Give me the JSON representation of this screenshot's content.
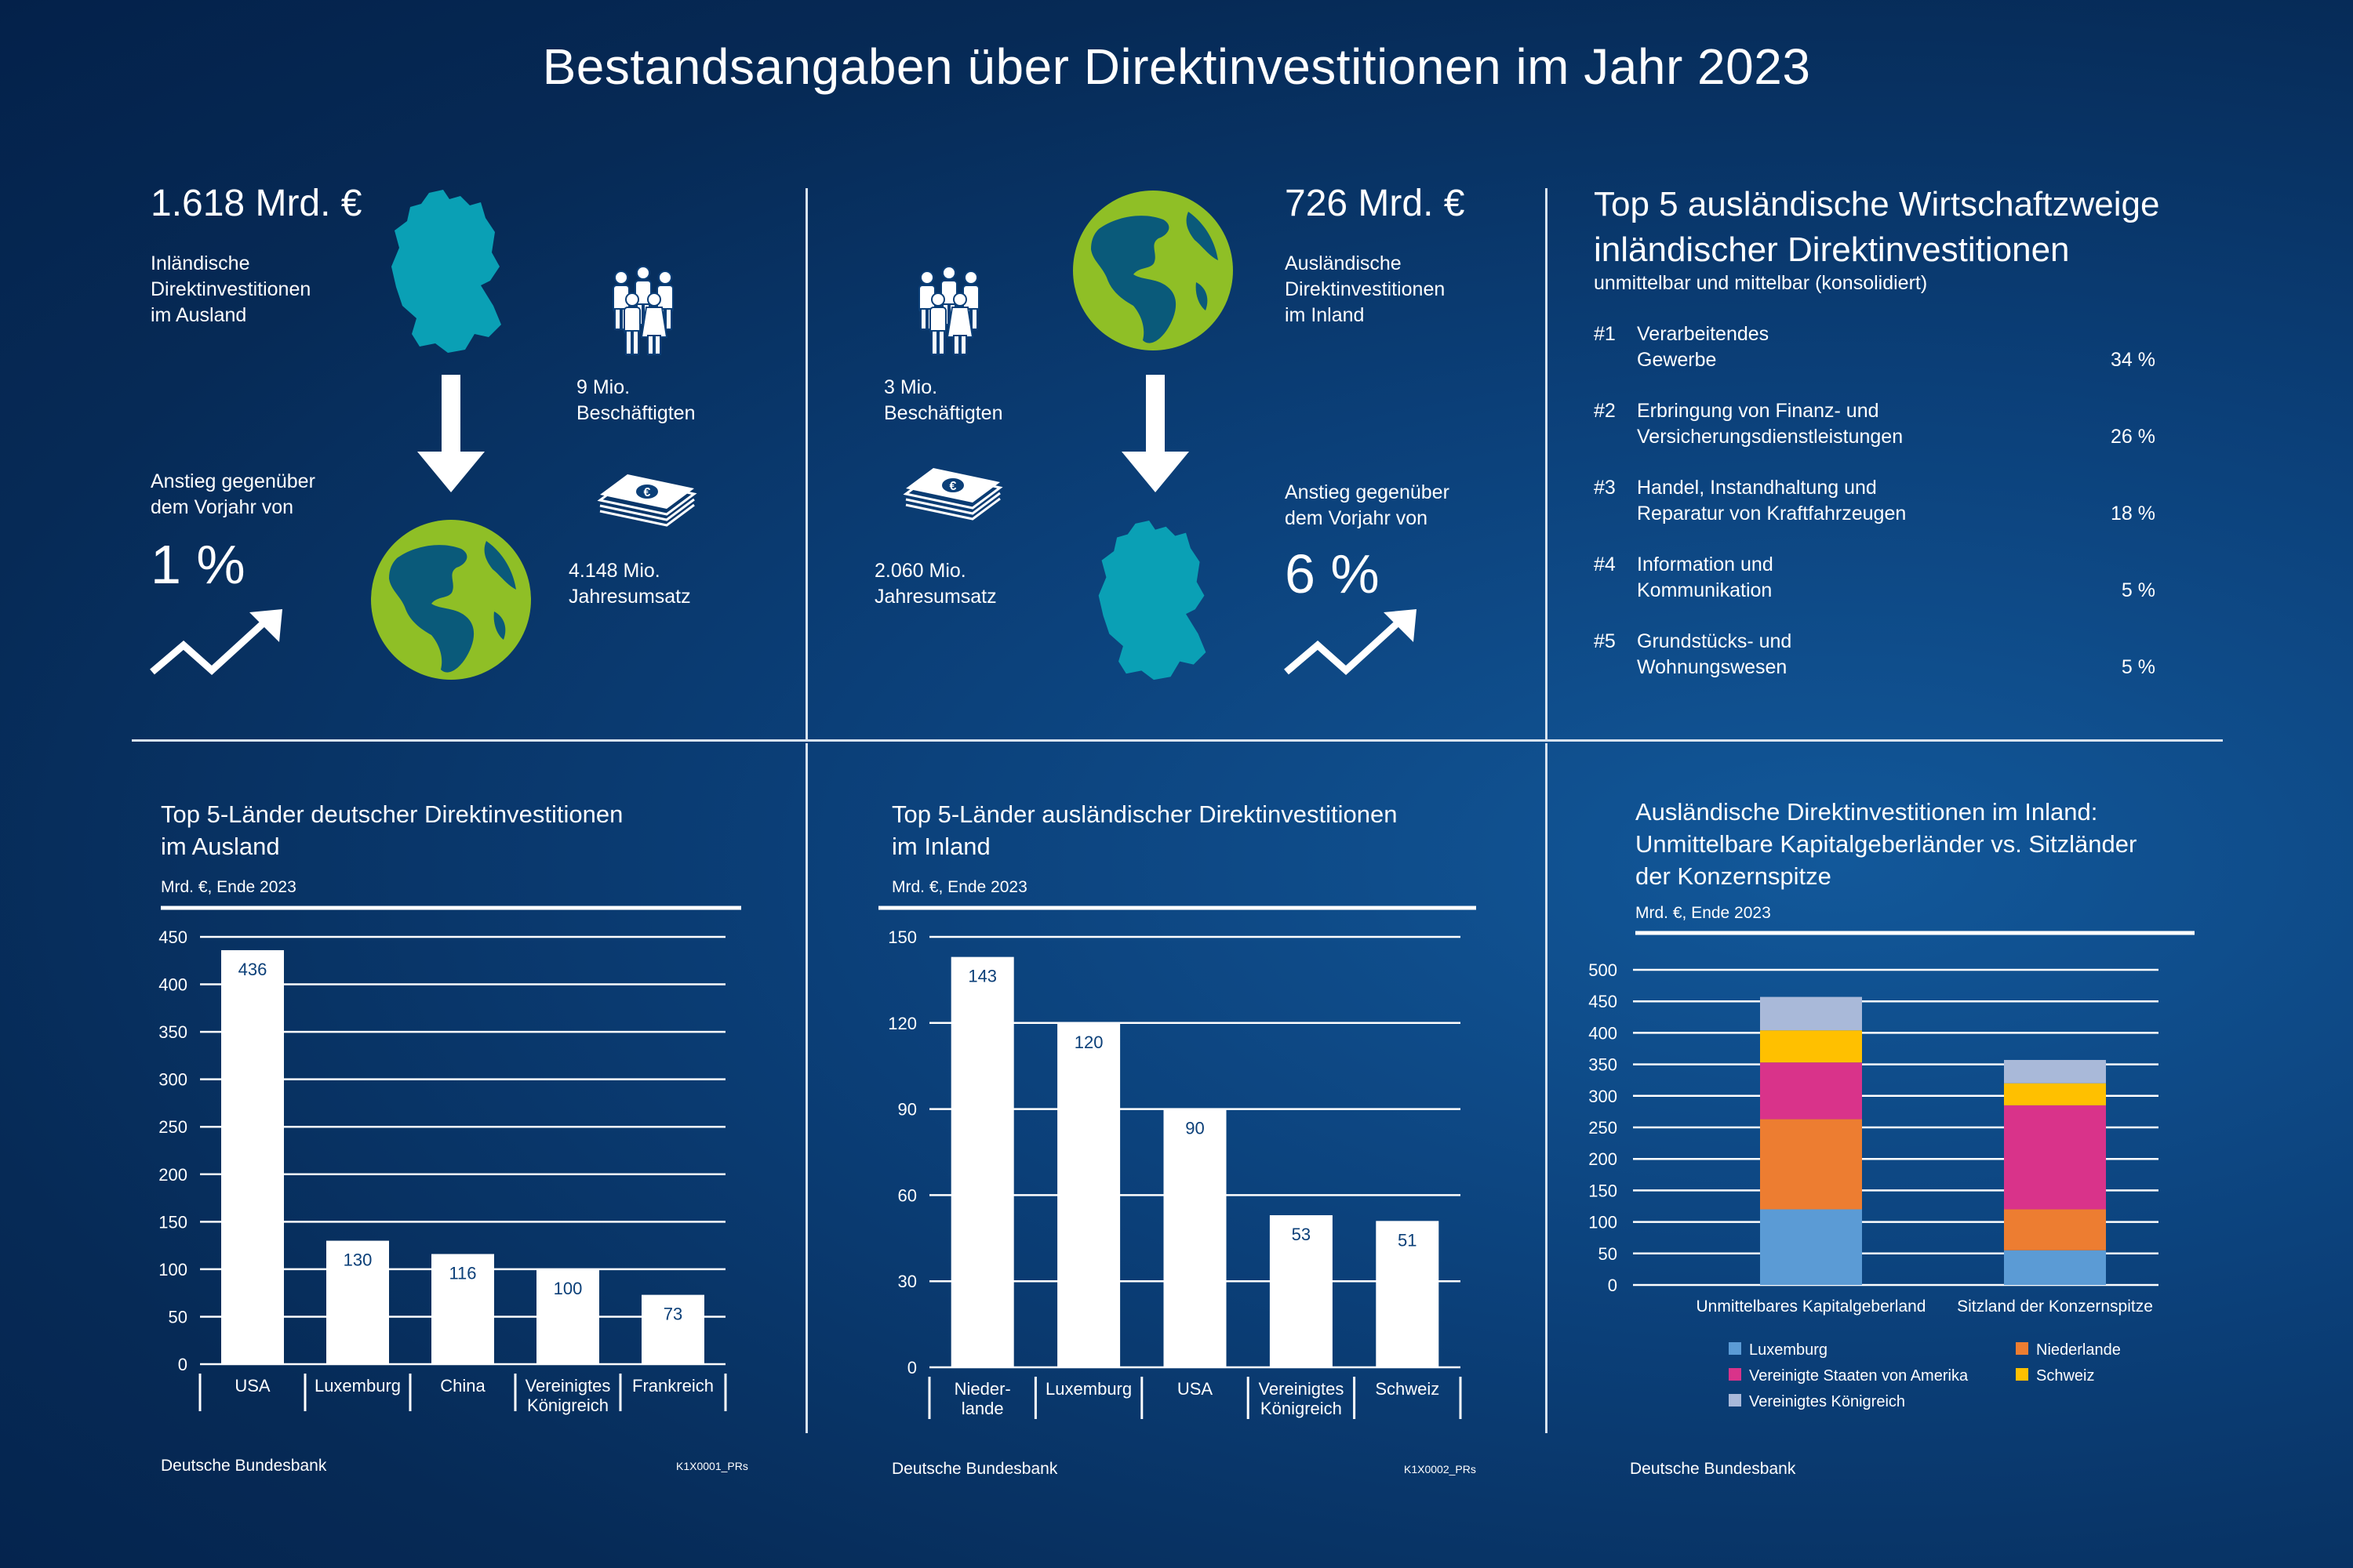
{
  "title": "Bestandsangaben über Direktinvestitionen im Jahr 2023",
  "left_panel": {
    "amount": "1.618 Mrd. €",
    "label_lines": [
      "Inländische",
      "Direktinvestitionen",
      "im Ausland"
    ],
    "employees_lines": [
      "9 Mio.",
      "Beschäftigten"
    ],
    "increase_lines": [
      "Anstieg gegenüber",
      "dem Vorjahr von"
    ],
    "increase_value": "1 %",
    "revenue_lines": [
      "4.148 Mio.",
      "Jahresumsatz"
    ]
  },
  "middle_panel": {
    "amount": "726 Mrd. €",
    "label_lines": [
      "Ausländische",
      "Direktinvestitionen",
      "im Inland"
    ],
    "employees_lines": [
      "3 Mio.",
      "Beschäftigten"
    ],
    "revenue_lines": [
      "2.060 Mio.",
      "Jahresumsatz"
    ],
    "increase_lines": [
      "Anstieg gegenüber",
      "dem Vorjahr von"
    ],
    "increase_value": "6 %"
  },
  "top5_sectors": {
    "title_lines": [
      "Top 5 ausländische Wirtschaftzweige",
      "inländischer Direktinvestitionen"
    ],
    "subtitle": "unmittelbar und mittelbar (konsolidiert)",
    "items": [
      {
        "rank": "#1",
        "lines": [
          "Verarbeitendes",
          "Gewerbe"
        ],
        "share": "34 %"
      },
      {
        "rank": "#2",
        "lines": [
          "Erbringung von Finanz- und",
          "Versicherungsdienstleistungen"
        ],
        "share": "26 %"
      },
      {
        "rank": "#3",
        "lines": [
          "Handel, Instandhaltung und",
          "Reparatur von Kraftfahrzeugen"
        ],
        "share": "18 %"
      },
      {
        "rank": "#4",
        "lines": [
          "Information und",
          "Kommunikation"
        ],
        "share": "5 %"
      },
      {
        "rank": "#5",
        "lines": [
          "Grundstücks- und",
          "Wohnungswesen"
        ],
        "share": "5 %"
      }
    ]
  },
  "icons": {
    "germany": "germany-map-icon",
    "globe": "globe-icon",
    "arrow": "down-arrow-icon",
    "people": "people-group-icon",
    "money": "banknote-stack-icon",
    "trend": "trend-up-icon"
  },
  "colors": {
    "germany": "#0aa0b5",
    "globe_land": "#8fbf26",
    "globe_sea": "#0a5a7a"
  },
  "footer": {
    "source1": "Deutsche Bundesbank",
    "code1": "K1X0001_PRs",
    "source2": "Deutsche Bundesbank",
    "code2": "K1X0002_PRs",
    "source3": "Deutsche Bundesbank"
  },
  "chart_data": [
    {
      "type": "bar",
      "title_lines": [
        "Top 5-Länder deutscher Direktinvestitionen",
        "im Ausland"
      ],
      "unit": "Mrd. €, Ende 2023",
      "categories": [
        [
          "USA"
        ],
        [
          "Luxemburg"
        ],
        [
          "China"
        ],
        [
          "Vereinigtes",
          "Königreich"
        ],
        [
          "Frankreich"
        ]
      ],
      "values": [
        436,
        130,
        116,
        100,
        73
      ],
      "ylim": [
        0,
        450
      ],
      "yticks": [
        0,
        50,
        100,
        150,
        200,
        250,
        300,
        350,
        400,
        450
      ]
    },
    {
      "type": "bar",
      "title_lines": [
        "Top 5-Länder ausländischer Direktinvestitionen",
        "im Inland"
      ],
      "unit": "Mrd. €, Ende 2023",
      "categories": [
        [
          "Nieder-",
          "lande"
        ],
        [
          "Luxemburg"
        ],
        [
          "USA"
        ],
        [
          "Vereinigtes",
          "Königreich"
        ],
        [
          "Schweiz"
        ]
      ],
      "values": [
        143,
        120,
        90,
        53,
        51
      ],
      "ylim": [
        0,
        150
      ],
      "yticks": [
        0,
        30,
        60,
        90,
        120,
        150
      ]
    },
    {
      "type": "bar",
      "stacked": true,
      "title_lines": [
        "Ausländische Direktinvestitionen im Inland:",
        "Unmittelbare Kapitalgeberländer vs. Sitzländer",
        "der Konzernspitze"
      ],
      "unit": "Mrd. €, Ende 2023",
      "categories": [
        "Unmittelbares Kapitalgeberland",
        "Sitzland der Konzernspitze"
      ],
      "series": [
        {
          "name": "Luxemburg",
          "color": "#5b9bd5",
          "values": [
            120,
            55
          ]
        },
        {
          "name": "Niederlande",
          "color": "#ed7d31",
          "values": [
            143,
            65
          ]
        },
        {
          "name": "Vereinigte Staaten von Amerika",
          "color": "#d9338a",
          "values": [
            90,
            165
          ]
        },
        {
          "name": "Schweiz",
          "color": "#ffc000",
          "values": [
            51,
            35
          ]
        },
        {
          "name": "Vereinigtes Königreich",
          "color": "#a9b9d9",
          "values": [
            53,
            37
          ]
        }
      ],
      "ylim": [
        0,
        500
      ],
      "yticks": [
        0,
        50,
        100,
        150,
        200,
        250,
        300,
        350,
        400,
        450,
        500
      ],
      "legend_position": "bottom"
    }
  ]
}
